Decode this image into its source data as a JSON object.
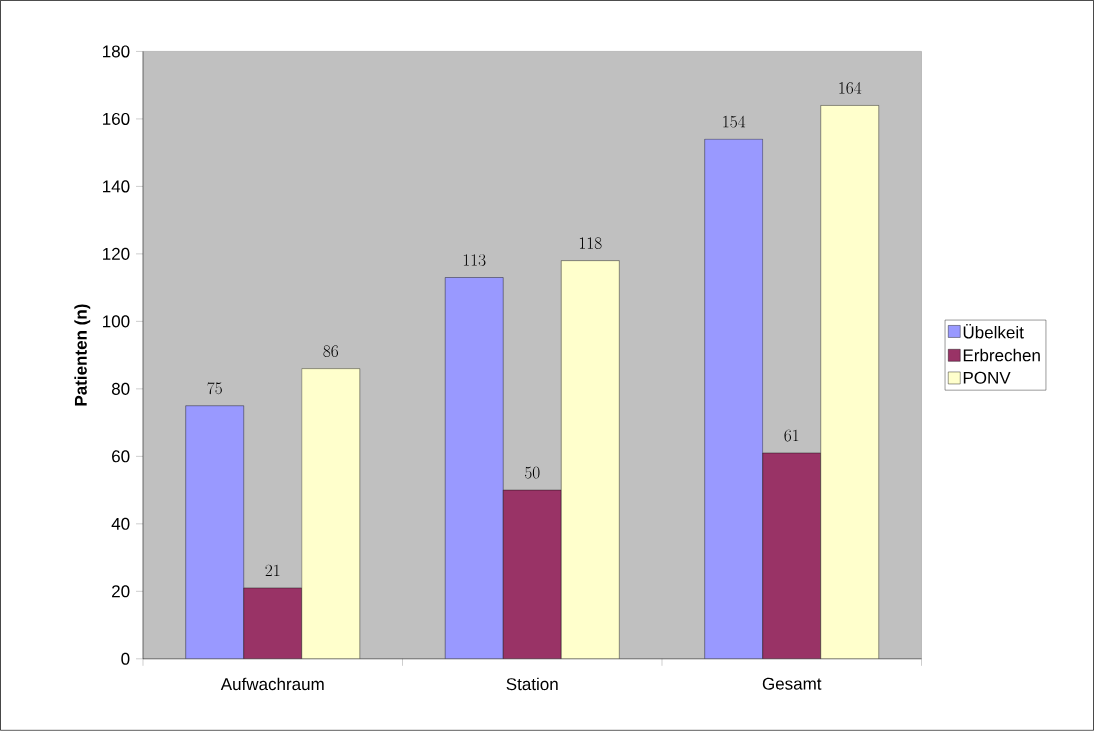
{
  "chart_data": {
    "type": "bar",
    "ylabel": "Patienten (n)",
    "categories": [
      "Aufwachraum",
      "Station",
      "Gesamt"
    ],
    "series": [
      {
        "name": "Übelkeit",
        "color": "#9999ff",
        "values": [
          75,
          113,
          154
        ]
      },
      {
        "name": "Erbrechen",
        "color": "#993366",
        "values": [
          21,
          50,
          61
        ]
      },
      {
        "name": "PONV",
        "color": "#ffffcc",
        "values": [
          86,
          118,
          164
        ]
      }
    ],
    "ylim": [
      0,
      180
    ],
    "yticks": [
      0,
      20,
      40,
      60,
      80,
      100,
      120,
      140,
      160,
      180
    ],
    "data_labels": true,
    "legend": "right"
  }
}
